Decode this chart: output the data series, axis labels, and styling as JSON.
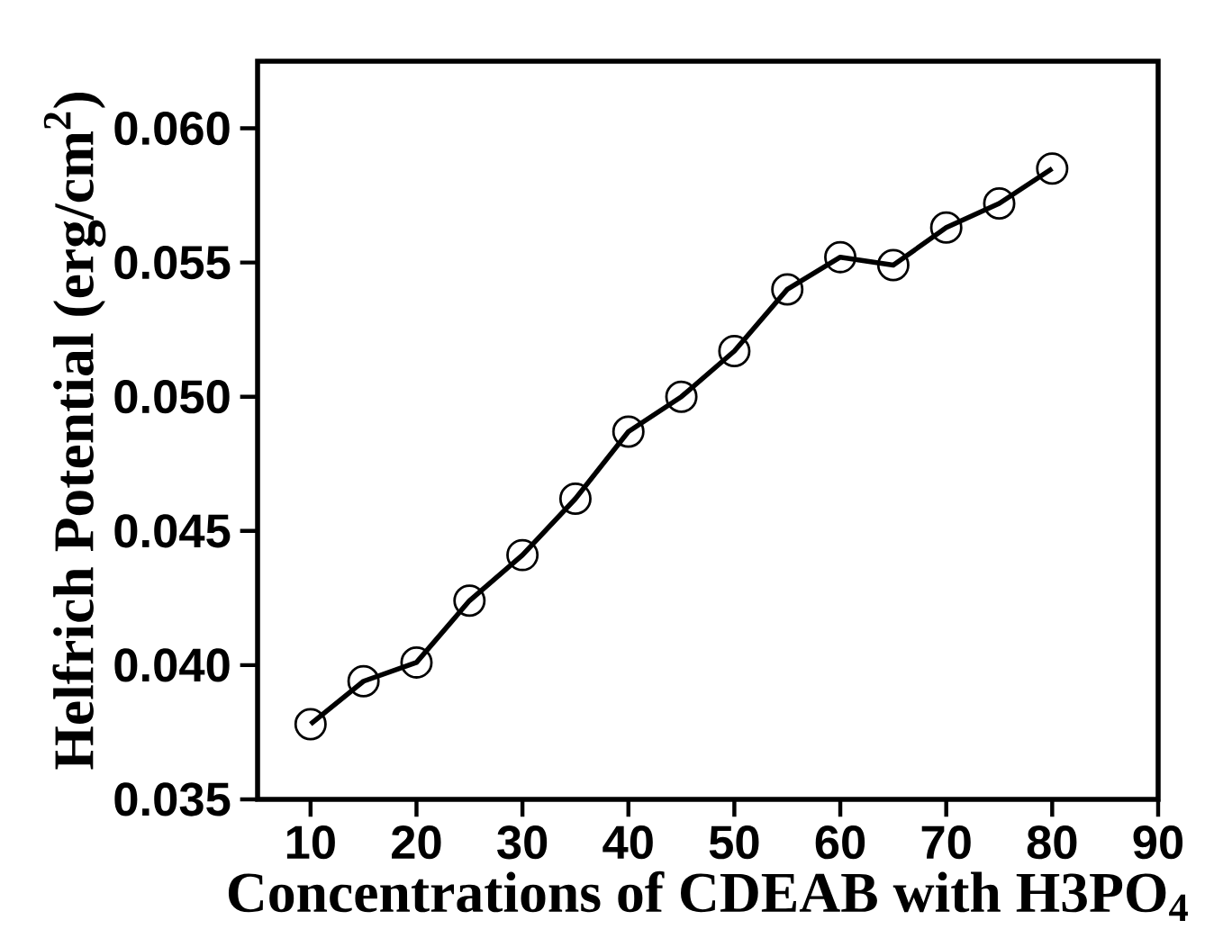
{
  "chart_data": {
    "type": "line",
    "xlabel": "Concentrations of CDEAB with H3PO$_{4}$",
    "ylabel": "Helfrich Potential (erg/cm$^{2}$)",
    "x": [
      10,
      15,
      20,
      25,
      30,
      35,
      40,
      45,
      50,
      55,
      60,
      65,
      70,
      75,
      80
    ],
    "series": [
      {
        "color": "#000000",
        "values": [
          0.0378,
          0.0394,
          0.0401,
          0.0424,
          0.0441,
          0.0462,
          0.0487,
          0.05,
          0.0517,
          0.054,
          0.0552,
          0.0549,
          0.0563,
          0.0572,
          0.0585
        ]
      }
    ],
    "xlim": [
      5,
      90
    ],
    "ylim": [
      0.035,
      0.0625
    ],
    "xticks": [
      10,
      20,
      30,
      40,
      50,
      60,
      70,
      80,
      90
    ],
    "yticks": [
      {
        "value": 0.035,
        "label": "0.035"
      },
      {
        "value": 0.04,
        "label": "0.040"
      },
      {
        "value": 0.045,
        "label": "0.045"
      },
      {
        "value": 0.05,
        "label": "0.050"
      },
      {
        "value": 0.055,
        "label": "0.055"
      },
      {
        "value": 0.06,
        "label": "0.060"
      }
    ],
    "marker": "circle",
    "line_style": "solid"
  }
}
